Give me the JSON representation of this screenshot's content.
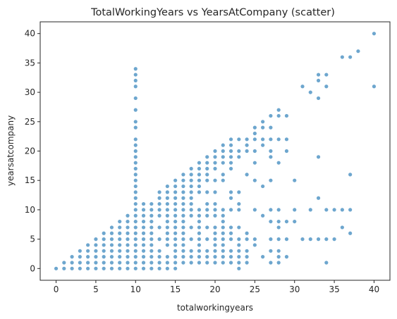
{
  "chart_data": {
    "type": "scatter",
    "title": "TotalWorkingYears vs YearsAtCompany (scatter)",
    "xlabel": "totalworkingyears",
    "ylabel": "yearsatcompany",
    "xlim": [
      -2,
      42
    ],
    "ylim": [
      -2,
      42
    ],
    "xticks": [
      "0",
      "5",
      "10",
      "15",
      "20",
      "25",
      "30",
      "35",
      "40"
    ],
    "yticks": [
      "0",
      "5",
      "10",
      "15",
      "20",
      "25",
      "30",
      "35",
      "40"
    ],
    "grid": false,
    "legend": "none",
    "marker_color": "#1f77b4",
    "marker_alpha": 0.65,
    "points": [
      [
        0,
        0
      ],
      [
        1,
        0
      ],
      [
        1,
        1
      ],
      [
        2,
        1
      ],
      [
        2,
        2
      ],
      [
        2,
        0
      ],
      [
        3,
        0
      ],
      [
        3,
        1
      ],
      [
        3,
        2
      ],
      [
        3,
        3
      ],
      [
        4,
        0
      ],
      [
        4,
        1
      ],
      [
        4,
        2
      ],
      [
        4,
        3
      ],
      [
        4,
        4
      ],
      [
        5,
        0
      ],
      [
        5,
        1
      ],
      [
        5,
        2
      ],
      [
        5,
        3
      ],
      [
        5,
        4
      ],
      [
        5,
        5
      ],
      [
        6,
        0
      ],
      [
        6,
        1
      ],
      [
        6,
        2
      ],
      [
        6,
        3
      ],
      [
        6,
        4
      ],
      [
        6,
        5
      ],
      [
        6,
        6
      ],
      [
        7,
        0
      ],
      [
        7,
        1
      ],
      [
        7,
        2
      ],
      [
        7,
        3
      ],
      [
        7,
        4
      ],
      [
        7,
        5
      ],
      [
        7,
        6
      ],
      [
        7,
        7
      ],
      [
        8,
        0
      ],
      [
        8,
        1
      ],
      [
        8,
        2
      ],
      [
        8,
        3
      ],
      [
        8,
        4
      ],
      [
        8,
        5
      ],
      [
        8,
        6
      ],
      [
        8,
        7
      ],
      [
        8,
        8
      ],
      [
        9,
        0
      ],
      [
        9,
        1
      ],
      [
        9,
        2
      ],
      [
        9,
        3
      ],
      [
        9,
        4
      ],
      [
        9,
        5
      ],
      [
        9,
        6
      ],
      [
        9,
        7
      ],
      [
        9,
        8
      ],
      [
        9,
        9
      ],
      [
        10,
        0
      ],
      [
        10,
        1
      ],
      [
        10,
        2
      ],
      [
        10,
        3
      ],
      [
        10,
        4
      ],
      [
        10,
        5
      ],
      [
        10,
        6
      ],
      [
        10,
        7
      ],
      [
        10,
        8
      ],
      [
        10,
        9
      ],
      [
        10,
        10
      ],
      [
        10,
        11
      ],
      [
        10,
        12
      ],
      [
        10,
        13
      ],
      [
        10,
        14
      ],
      [
        10,
        15
      ],
      [
        10,
        16
      ],
      [
        10,
        17
      ],
      [
        10,
        18
      ],
      [
        10,
        19
      ],
      [
        10,
        20
      ],
      [
        10,
        21
      ],
      [
        10,
        22
      ],
      [
        10,
        24
      ],
      [
        10,
        25
      ],
      [
        10,
        27
      ],
      [
        10,
        29
      ],
      [
        10,
        31
      ],
      [
        10,
        32
      ],
      [
        10,
        33
      ],
      [
        10,
        34
      ],
      [
        11,
        0
      ],
      [
        11,
        1
      ],
      [
        11,
        2
      ],
      [
        11,
        3
      ],
      [
        11,
        4
      ],
      [
        11,
        5
      ],
      [
        11,
        6
      ],
      [
        11,
        7
      ],
      [
        11,
        8
      ],
      [
        11,
        9
      ],
      [
        11,
        10
      ],
      [
        11,
        11
      ],
      [
        12,
        0
      ],
      [
        12,
        1
      ],
      [
        12,
        2
      ],
      [
        12,
        3
      ],
      [
        12,
        4
      ],
      [
        12,
        5
      ],
      [
        12,
        6
      ],
      [
        12,
        7
      ],
      [
        12,
        8
      ],
      [
        12,
        9
      ],
      [
        12,
        10
      ],
      [
        12,
        11
      ],
      [
        13,
        0
      ],
      [
        13,
        1
      ],
      [
        13,
        2
      ],
      [
        13,
        3
      ],
      [
        13,
        5
      ],
      [
        13,
        7
      ],
      [
        13,
        9
      ],
      [
        13,
        10
      ],
      [
        13,
        11
      ],
      [
        13,
        12
      ],
      [
        13,
        13
      ],
      [
        14,
        0
      ],
      [
        14,
        1
      ],
      [
        14,
        2
      ],
      [
        14,
        4
      ],
      [
        14,
        5
      ],
      [
        14,
        6
      ],
      [
        14,
        7
      ],
      [
        14,
        8
      ],
      [
        14,
        9
      ],
      [
        14,
        10
      ],
      [
        14,
        11
      ],
      [
        14,
        12
      ],
      [
        14,
        13
      ],
      [
        14,
        14
      ],
      [
        15,
        0
      ],
      [
        15,
        1
      ],
      [
        15,
        2
      ],
      [
        15,
        3
      ],
      [
        15,
        4
      ],
      [
        15,
        5
      ],
      [
        15,
        6
      ],
      [
        15,
        7
      ],
      [
        15,
        8
      ],
      [
        15,
        9
      ],
      [
        15,
        10
      ],
      [
        15,
        11
      ],
      [
        15,
        12
      ],
      [
        15,
        13
      ],
      [
        15,
        14
      ],
      [
        15,
        15
      ],
      [
        16,
        1
      ],
      [
        16,
        2
      ],
      [
        16,
        3
      ],
      [
        16,
        4
      ],
      [
        16,
        5
      ],
      [
        16,
        6
      ],
      [
        16,
        7
      ],
      [
        16,
        8
      ],
      [
        16,
        9
      ],
      [
        16,
        10
      ],
      [
        16,
        11
      ],
      [
        16,
        12
      ],
      [
        16,
        13
      ],
      [
        16,
        14
      ],
      [
        16,
        15
      ],
      [
        16,
        16
      ],
      [
        17,
        1
      ],
      [
        17,
        2
      ],
      [
        17,
        3
      ],
      [
        17,
        5
      ],
      [
        17,
        7
      ],
      [
        17,
        9
      ],
      [
        17,
        10
      ],
      [
        17,
        11
      ],
      [
        17,
        12
      ],
      [
        17,
        13
      ],
      [
        17,
        14
      ],
      [
        17,
        15
      ],
      [
        17,
        16
      ],
      [
        17,
        17
      ],
      [
        18,
        1
      ],
      [
        18,
        2
      ],
      [
        18,
        3
      ],
      [
        18,
        4
      ],
      [
        18,
        5
      ],
      [
        18,
        6
      ],
      [
        18,
        7
      ],
      [
        18,
        8
      ],
      [
        18,
        9
      ],
      [
        18,
        10
      ],
      [
        18,
        13
      ],
      [
        18,
        14
      ],
      [
        18,
        15
      ],
      [
        18,
        16
      ],
      [
        18,
        17
      ],
      [
        18,
        18
      ],
      [
        19,
        1
      ],
      [
        19,
        2
      ],
      [
        19,
        3
      ],
      [
        19,
        5
      ],
      [
        19,
        7
      ],
      [
        19,
        9
      ],
      [
        19,
        10
      ],
      [
        19,
        11
      ],
      [
        19,
        13
      ],
      [
        19,
        15
      ],
      [
        19,
        16
      ],
      [
        19,
        17
      ],
      [
        19,
        18
      ],
      [
        19,
        19
      ],
      [
        20,
        1
      ],
      [
        20,
        2
      ],
      [
        20,
        3
      ],
      [
        20,
        4
      ],
      [
        20,
        5
      ],
      [
        20,
        6
      ],
      [
        20,
        7
      ],
      [
        20,
        9
      ],
      [
        20,
        10
      ],
      [
        20,
        11
      ],
      [
        20,
        13
      ],
      [
        20,
        15
      ],
      [
        20,
        17
      ],
      [
        20,
        18
      ],
      [
        20,
        19
      ],
      [
        20,
        20
      ],
      [
        21,
        1
      ],
      [
        21,
        2
      ],
      [
        21,
        3
      ],
      [
        21,
        4
      ],
      [
        21,
        5
      ],
      [
        21,
        6
      ],
      [
        21,
        7
      ],
      [
        21,
        8
      ],
      [
        21,
        9
      ],
      [
        21,
        10
      ],
      [
        21,
        15
      ],
      [
        21,
        16
      ],
      [
        21,
        18
      ],
      [
        21,
        19
      ],
      [
        21,
        20
      ],
      [
        21,
        21
      ],
      [
        22,
        1
      ],
      [
        22,
        2
      ],
      [
        22,
        3
      ],
      [
        22,
        5
      ],
      [
        22,
        6
      ],
      [
        22,
        7
      ],
      [
        22,
        10
      ],
      [
        22,
        12
      ],
      [
        22,
        13
      ],
      [
        22,
        17
      ],
      [
        22,
        18
      ],
      [
        22,
        19
      ],
      [
        22,
        20
      ],
      [
        22,
        21
      ],
      [
        22,
        22
      ],
      [
        23,
        0
      ],
      [
        23,
        1
      ],
      [
        23,
        2
      ],
      [
        23,
        3
      ],
      [
        23,
        4
      ],
      [
        23,
        5
      ],
      [
        23,
        7
      ],
      [
        23,
        10
      ],
      [
        23,
        11
      ],
      [
        23,
        13
      ],
      [
        23,
        19
      ],
      [
        23,
        20
      ],
      [
        23,
        22
      ],
      [
        24,
        1
      ],
      [
        24,
        2
      ],
      [
        24,
        3
      ],
      [
        24,
        5
      ],
      [
        24,
        6
      ],
      [
        24,
        16
      ],
      [
        24,
        20
      ],
      [
        24,
        21
      ],
      [
        24,
        22
      ],
      [
        25,
        4
      ],
      [
        25,
        5
      ],
      [
        25,
        10
      ],
      [
        25,
        15
      ],
      [
        25,
        18
      ],
      [
        25,
        20
      ],
      [
        25,
        22
      ],
      [
        25,
        23
      ],
      [
        25,
        24
      ],
      [
        26,
        2
      ],
      [
        26,
        9
      ],
      [
        26,
        14
      ],
      [
        26,
        21
      ],
      [
        26,
        22
      ],
      [
        26,
        24
      ],
      [
        26,
        25
      ],
      [
        27,
        1
      ],
      [
        27,
        3
      ],
      [
        27,
        5
      ],
      [
        27,
        8
      ],
      [
        27,
        10
      ],
      [
        27,
        15
      ],
      [
        27,
        19
      ],
      [
        27,
        20
      ],
      [
        27,
        22
      ],
      [
        27,
        24
      ],
      [
        27,
        26
      ],
      [
        28,
        1
      ],
      [
        28,
        2
      ],
      [
        28,
        3
      ],
      [
        28,
        5
      ],
      [
        28,
        7
      ],
      [
        28,
        8
      ],
      [
        28,
        10
      ],
      [
        28,
        18
      ],
      [
        28,
        22
      ],
      [
        28,
        26
      ],
      [
        28,
        27
      ],
      [
        29,
        2
      ],
      [
        29,
        5
      ],
      [
        29,
        8
      ],
      [
        29,
        20
      ],
      [
        29,
        22
      ],
      [
        29,
        26
      ],
      [
        30,
        8
      ],
      [
        30,
        10
      ],
      [
        30,
        15
      ],
      [
        31,
        5
      ],
      [
        31,
        31
      ],
      [
        32,
        5
      ],
      [
        32,
        10
      ],
      [
        32,
        30
      ],
      [
        33,
        5
      ],
      [
        33,
        12
      ],
      [
        33,
        19
      ],
      [
        33,
        29
      ],
      [
        33,
        32
      ],
      [
        33,
        33
      ],
      [
        34,
        1
      ],
      [
        34,
        5
      ],
      [
        34,
        10
      ],
      [
        34,
        31
      ],
      [
        34,
        33
      ],
      [
        35,
        5
      ],
      [
        35,
        10
      ],
      [
        36,
        7
      ],
      [
        36,
        10
      ],
      [
        36,
        36
      ],
      [
        37,
        6
      ],
      [
        37,
        10
      ],
      [
        37,
        16
      ],
      [
        37,
        36
      ],
      [
        38,
        37
      ],
      [
        40,
        31
      ],
      [
        40,
        40
      ]
    ]
  }
}
